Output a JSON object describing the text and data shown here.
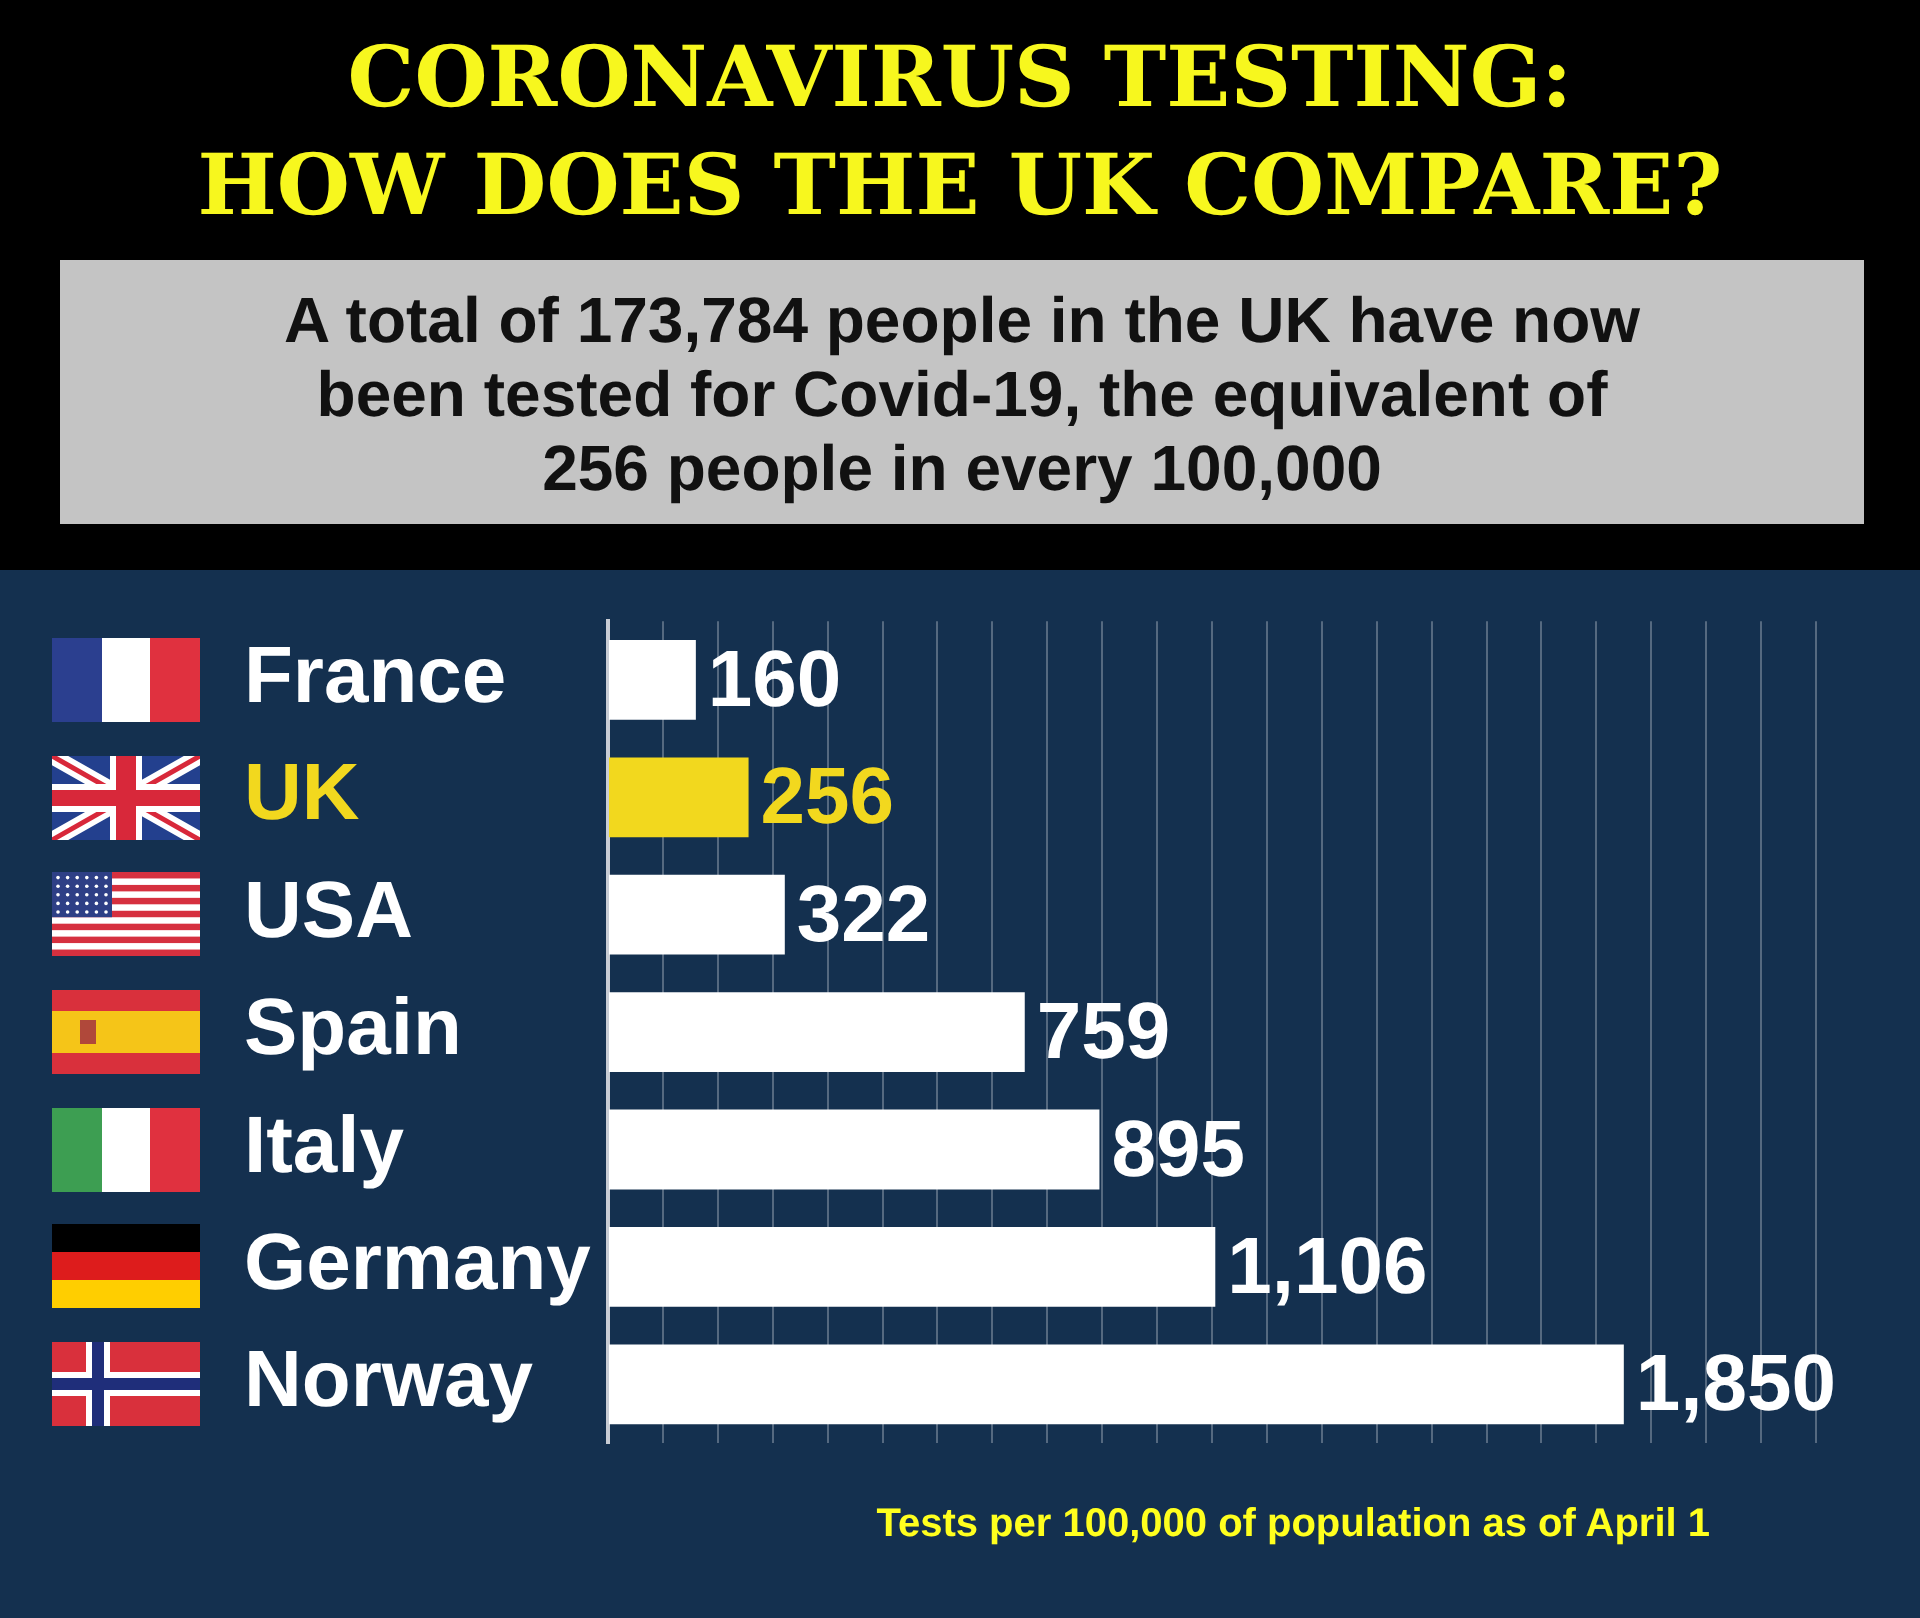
{
  "chart_data": {
    "type": "bar",
    "orientation": "horizontal",
    "title": "CORONAVIRUS TESTING:\nHOW DOES THE UK COMPARE?",
    "subtitle": "A total of 173,784 people in the UK have now\nbeen tested for Covid-19, the equivalent of\n256 people in every 100,000",
    "categories": [
      "France",
      "UK",
      "USA",
      "Spain",
      "Italy",
      "Germany",
      "Norway"
    ],
    "values": [
      160,
      256,
      322,
      759,
      895,
      1106,
      1850
    ],
    "colors": [
      "#ffffff",
      "#f2d81e",
      "#ffffff",
      "#ffffff",
      "#ffffff",
      "#ffffff",
      "#ffffff"
    ],
    "value_labels": [
      "160",
      "256",
      "322",
      "759",
      "895",
      "1,106",
      "1,850"
    ],
    "xlim": [
      0,
      2200
    ],
    "xticks": [
      {
        "value": 0,
        "label": null
      },
      {
        "value": 100,
        "label": null
      },
      {
        "value": 200,
        "label": null
      },
      {
        "value": 300,
        "label": null
      },
      {
        "value": 400,
        "label": null
      },
      {
        "value": 500,
        "label": null
      },
      {
        "value": 600,
        "label": null
      },
      {
        "value": 700,
        "label": null
      },
      {
        "value": 800,
        "label": null
      },
      {
        "value": 900,
        "label": null
      },
      {
        "value": 1000,
        "label": null
      },
      {
        "value": 1100,
        "label": null
      },
      {
        "value": 1200,
        "label": null
      },
      {
        "value": 1300,
        "label": null
      },
      {
        "value": 1400,
        "label": null
      },
      {
        "value": 1500,
        "label": null
      },
      {
        "value": 1600,
        "label": null
      },
      {
        "value": 1700,
        "label": null
      },
      {
        "value": 1800,
        "label": null
      },
      {
        "value": 1900,
        "label": null
      },
      {
        "value": 2000,
        "label": null
      },
      {
        "value": 2100,
        "label": null
      },
      {
        "value": 2200,
        "label": null
      }
    ],
    "tick_labels": "y",
    "grid": "x",
    "annotations": [
      "Tests per 100,000 of population as of April 1"
    ]
  }
}
